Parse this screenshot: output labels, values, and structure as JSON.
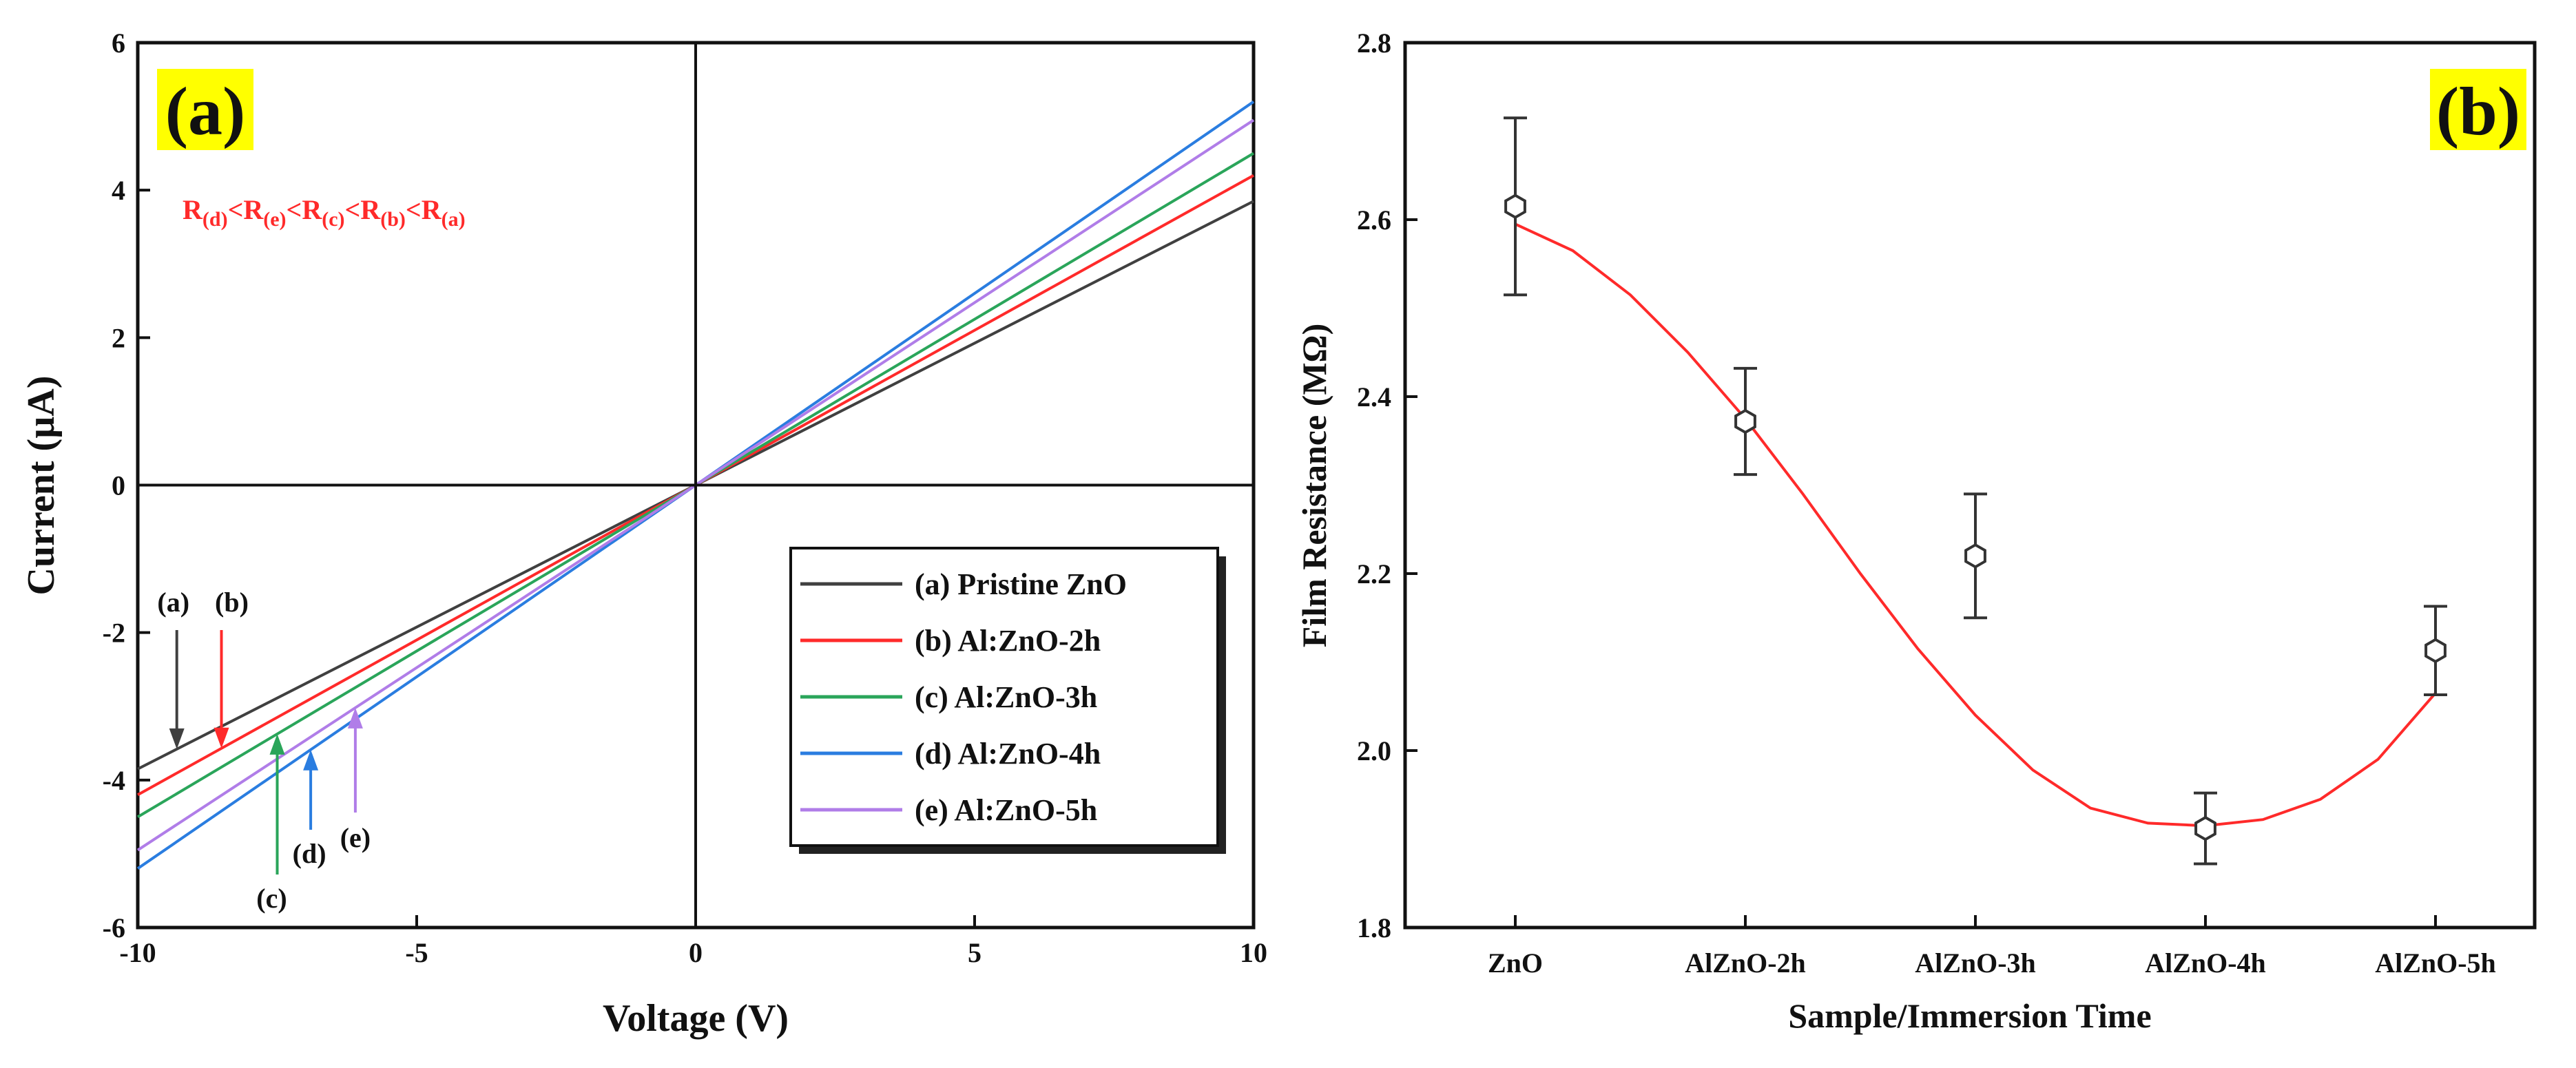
{
  "chart_data": [
    {
      "type": "line",
      "panel_label": "(a)",
      "xlabel": "Voltage (V)",
      "ylabel": "Current (µA)",
      "xlim": [
        -10,
        10
      ],
      "ylim": [
        -6,
        6
      ],
      "x_ticks": [
        "-10",
        "-5",
        "0",
        "5",
        "10"
      ],
      "y_ticks": [
        "-6",
        "-4",
        "-2",
        "0",
        "2",
        "4",
        "6"
      ],
      "annotation": {
        "parts": [
          {
            "base": "R",
            "sub": "(d)"
          },
          {
            "base": "R",
            "sub": "(e)"
          },
          {
            "base": "R",
            "sub": "(c)"
          },
          {
            "base": "R",
            "sub": "(b)"
          },
          {
            "base": "R",
            "sub": "(a)"
          }
        ],
        "separator": "<"
      },
      "series": [
        {
          "name": "(a) Pristine ZnO",
          "tag": "(a)",
          "color": "#404040",
          "x": [
            -10,
            10
          ],
          "y": [
            -3.85,
            3.85
          ],
          "arrow_x": -9.3
        },
        {
          "name": "(b) Al:ZnO-2h",
          "tag": "(b)",
          "color": "#ff2a2a",
          "x": [
            -10,
            10
          ],
          "y": [
            -4.2,
            4.2
          ],
          "arrow_x": -8.5
        },
        {
          "name": "(c) Al:ZnO-3h",
          "tag": "(c)",
          "color": "#2aa55a",
          "x": [
            -10,
            10
          ],
          "y": [
            -4.5,
            4.5
          ],
          "arrow_x": -7.5
        },
        {
          "name": "(d) Al:ZnO-4h",
          "tag": "(d)",
          "color": "#2a7de0",
          "x": [
            -10,
            10
          ],
          "y": [
            -5.2,
            5.2
          ],
          "arrow_x": -6.9
        },
        {
          "name": "(e) Al:ZnO-5h",
          "tag": "(e)",
          "color": "#b07de8",
          "x": [
            -10,
            10
          ],
          "y": [
            -4.95,
            4.95
          ],
          "arrow_x": -6.1
        }
      ]
    },
    {
      "type": "scatter",
      "panel_label": "(b)",
      "xlabel": "Sample/Immersion Time",
      "ylabel": "Film Resistance (MΩ)",
      "ylim": [
        1.8,
        2.8
      ],
      "y_ticks": [
        "1.8",
        "2.0",
        "2.2",
        "2.4",
        "2.6",
        "2.8"
      ],
      "categories": [
        "ZnO",
        "AlZnO-2h",
        "AlZnO-3h",
        "AlZnO-4h",
        "AlZnO-5h"
      ],
      "values": [
        2.615,
        2.372,
        2.22,
        1.912,
        2.113
      ],
      "error": [
        0.1,
        0.06,
        0.07,
        0.04,
        0.05
      ],
      "fit_color": "#ff2a2a",
      "fit_curve": [
        [
          0.0,
          2.595
        ],
        [
          0.25,
          2.565
        ],
        [
          0.5,
          2.515
        ],
        [
          0.75,
          2.45
        ],
        [
          1.0,
          2.375
        ],
        [
          1.25,
          2.29
        ],
        [
          1.5,
          2.2
        ],
        [
          1.75,
          2.115
        ],
        [
          2.0,
          2.04
        ],
        [
          2.25,
          1.978
        ],
        [
          2.5,
          1.935
        ],
        [
          2.75,
          1.918
        ],
        [
          3.0,
          1.915
        ],
        [
          3.25,
          1.922
        ],
        [
          3.5,
          1.945
        ],
        [
          3.75,
          1.99
        ],
        [
          4.0,
          2.065
        ]
      ]
    }
  ]
}
